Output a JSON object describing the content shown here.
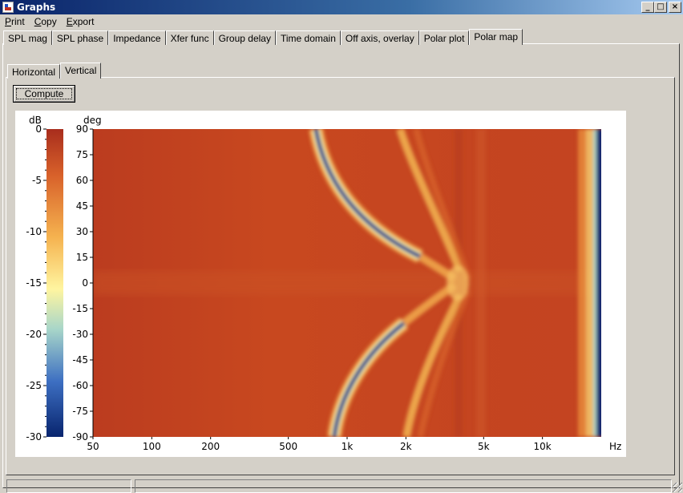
{
  "window": {
    "title": "Graphs",
    "icon": "graphs-app-icon",
    "buttons": {
      "minimize": "_",
      "maximize": "□",
      "close": "×"
    }
  },
  "menu": [
    {
      "label": "Print",
      "accel": "P",
      "rest": "rint"
    },
    {
      "label": "Copy",
      "accel": "C",
      "rest": "opy"
    },
    {
      "label": "Export",
      "accel": "E",
      "rest": "xport"
    }
  ],
  "tabs": [
    {
      "label": "SPL mag",
      "active": false
    },
    {
      "label": "SPL phase",
      "active": false
    },
    {
      "label": "Impedance",
      "active": false
    },
    {
      "label": "Xfer func",
      "active": false
    },
    {
      "label": "Group delay",
      "active": false
    },
    {
      "label": "Time domain",
      "active": false
    },
    {
      "label": "Off axis, overlay",
      "active": false
    },
    {
      "label": "Polar plot",
      "active": false
    },
    {
      "label": "Polar map",
      "active": true
    }
  ],
  "subtabs": [
    {
      "label": "Horizontal",
      "active": false
    },
    {
      "label": "Vertical",
      "active": true
    }
  ],
  "compute_label": "Compute",
  "chart_data": {
    "type": "heatmap",
    "colorbar": {
      "label": "dB",
      "ticks": [
        0,
        -5,
        -10,
        -15,
        -20,
        -25,
        -30
      ],
      "range": [
        -30,
        0
      ],
      "colormap": [
        "#08246e",
        "#3d6fc2",
        "#a8d6c9",
        "#fff5a0",
        "#f5b24f",
        "#d8612a",
        "#a82d1d"
      ]
    },
    "y": {
      "label": "deg",
      "ticks": [
        90,
        75,
        60,
        45,
        30,
        15,
        0,
        -15,
        -30,
        -45,
        -60,
        -75,
        -90
      ],
      "range": [
        -90,
        90
      ]
    },
    "x": {
      "label": "Hz",
      "scale": "log",
      "ticks": [
        "50",
        "100",
        "200",
        "500",
        "1k",
        "2k",
        "5k",
        "10k"
      ],
      "tick_values": [
        50,
        100,
        200,
        500,
        1000,
        2000,
        5000,
        10000
      ],
      "range": [
        50,
        20000
      ]
    },
    "description_colors": {
      "background": "#c34321"
    }
  },
  "status": {
    "pane1": "",
    "pane2": ""
  }
}
